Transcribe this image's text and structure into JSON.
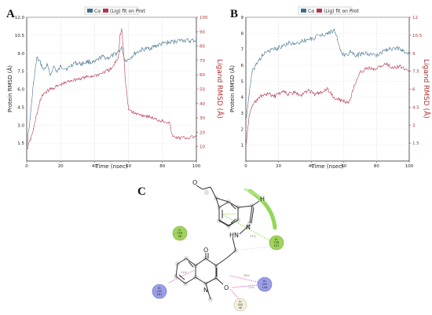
{
  "colors": {
    "protein": "#3d6f8c",
    "ligand": "#b3344a",
    "right_axis": "#b03030"
  },
  "chart_data": [
    {
      "type": "line",
      "panel_label": "A",
      "xlabel": "Time (nsec)",
      "ylabel": "Protein RMSD (Å)",
      "y2label": "Ligand RMSD (Å)",
      "xlim": [
        0,
        100
      ],
      "ylim": [
        0,
        12
      ],
      "y2lim": [
        0,
        100
      ],
      "x_ticks": [
        "0",
        "20",
        "40",
        "60",
        "80",
        "100"
      ],
      "y_ticks": [
        "1.5",
        "3.0",
        "4.5",
        "6.0",
        "7.5",
        "9.0",
        "10.5",
        "12.0"
      ],
      "y2_ticks": [
        "10",
        "20",
        "30",
        "40",
        "50",
        "60",
        "70",
        "80",
        "90",
        "100"
      ],
      "legend": [
        "Cα",
        "(Lig) fit on Prot"
      ],
      "series": [
        {
          "name": "Cα",
          "axis": "left",
          "x": [
            0,
            2,
            4,
            6,
            8,
            10,
            12,
            14,
            16,
            18,
            20,
            24,
            28,
            32,
            36,
            40,
            44,
            48,
            52,
            56,
            58,
            60,
            64,
            68,
            72,
            76,
            80,
            84,
            88,
            92,
            96,
            100
          ],
          "y": [
            1.2,
            3.5,
            6.5,
            8.6,
            8.2,
            7.6,
            8.0,
            7.2,
            7.9,
            7.4,
            7.9,
            7.7,
            8.2,
            8.1,
            8.3,
            8.2,
            8.7,
            8.6,
            8.9,
            9.4,
            8.4,
            8.5,
            9.0,
            9.3,
            9.4,
            9.6,
            9.8,
            9.9,
            10.0,
            10.1,
            10.0,
            10.1
          ]
        },
        {
          "name": "(Lig) fit on Prot",
          "axis": "right",
          "x": [
            0,
            2,
            4,
            6,
            8,
            10,
            14,
            18,
            22,
            26,
            30,
            34,
            38,
            42,
            46,
            50,
            54,
            55,
            56,
            57,
            58,
            60,
            64,
            68,
            72,
            76,
            80,
            84,
            86,
            90,
            94,
            100
          ],
          "y": [
            8,
            14,
            22,
            33,
            42,
            47,
            50,
            52,
            54,
            56,
            57,
            58,
            59,
            60,
            62,
            64,
            72,
            88,
            92,
            78,
            58,
            36,
            33,
            32,
            31,
            29,
            28,
            27,
            17,
            16,
            16,
            17
          ]
        }
      ]
    },
    {
      "type": "line",
      "panel_label": "B",
      "xlabel": "Time (nsec)",
      "ylabel": "Protein RMSD (Å)",
      "y2label": "Ligand RMSD (Å)",
      "xlim": [
        0,
        100
      ],
      "ylim": [
        0,
        9
      ],
      "y2lim": [
        0,
        12
      ],
      "x_ticks": [
        "0",
        "20",
        "40",
        "60",
        "80",
        "100"
      ],
      "y_ticks": [
        "1",
        "2",
        "3",
        "4",
        "5",
        "6",
        "7",
        "8",
        "9"
      ],
      "y2_ticks": [
        "1.5",
        "3",
        "4.5",
        "6",
        "7.5",
        "9",
        "10.5",
        "12"
      ],
      "legend": [
        "Cα",
        "(Lig) fit on Prot"
      ],
      "series": [
        {
          "name": "Cα",
          "axis": "left",
          "x": [
            0,
            2,
            4,
            6,
            8,
            10,
            14,
            18,
            22,
            26,
            30,
            34,
            38,
            42,
            46,
            50,
            54,
            56,
            58,
            60,
            64,
            68,
            72,
            76,
            80,
            84,
            88,
            92,
            96,
            100
          ],
          "y": [
            2.5,
            4.2,
            5.6,
            6.0,
            6.3,
            6.6,
            6.9,
            7.0,
            7.2,
            7.4,
            7.3,
            7.5,
            7.6,
            7.7,
            7.9,
            8.0,
            8.2,
            7.6,
            6.9,
            6.6,
            6.8,
            6.6,
            6.8,
            6.7,
            6.6,
            6.9,
            7.0,
            7.1,
            6.9,
            6.7
          ]
        },
        {
          "name": "(Lig) fit on Prot",
          "axis": "right",
          "x": [
            0,
            2,
            4,
            6,
            8,
            10,
            14,
            18,
            22,
            26,
            30,
            34,
            38,
            42,
            46,
            50,
            54,
            58,
            62,
            64,
            66,
            70,
            74,
            78,
            82,
            86,
            90,
            94,
            100
          ],
          "y": [
            1.2,
            3.8,
            4.6,
            5.0,
            5.3,
            5.5,
            5.6,
            5.4,
            5.8,
            5.6,
            5.7,
            5.5,
            5.9,
            5.6,
            5.7,
            6.0,
            5.3,
            5.1,
            4.9,
            5.0,
            6.2,
            7.4,
            7.8,
            7.6,
            7.9,
            8.1,
            7.8,
            7.9,
            7.6
          ]
        }
      ]
    }
  ],
  "diagram": {
    "panel_label": "C",
    "atom_labels": {
      "h": "H",
      "n": "N",
      "hn": "HN",
      "o_ketone": "O",
      "n_ring": "N",
      "o_ether": "O",
      "o_methoxy": "O"
    },
    "residues": [
      {
        "id": "tyr36",
        "chain": "A:",
        "name": "TYR",
        "number": "36"
      },
      {
        "id": "tyr107",
        "chain": "B:",
        "name": "TYR",
        "number": "107"
      },
      {
        "id": "lys144",
        "chain": "B:",
        "name": "LYS",
        "number": "144"
      },
      {
        "id": "lys161",
        "chain": "B:",
        "name": "LYS",
        "number": "161"
      },
      {
        "id": "gly40",
        "chain": "A:",
        "name": "GLY",
        "number": "40"
      }
    ],
    "interaction_percentages": [
      "37%",
      "26%",
      "11%",
      "11%"
    ]
  }
}
